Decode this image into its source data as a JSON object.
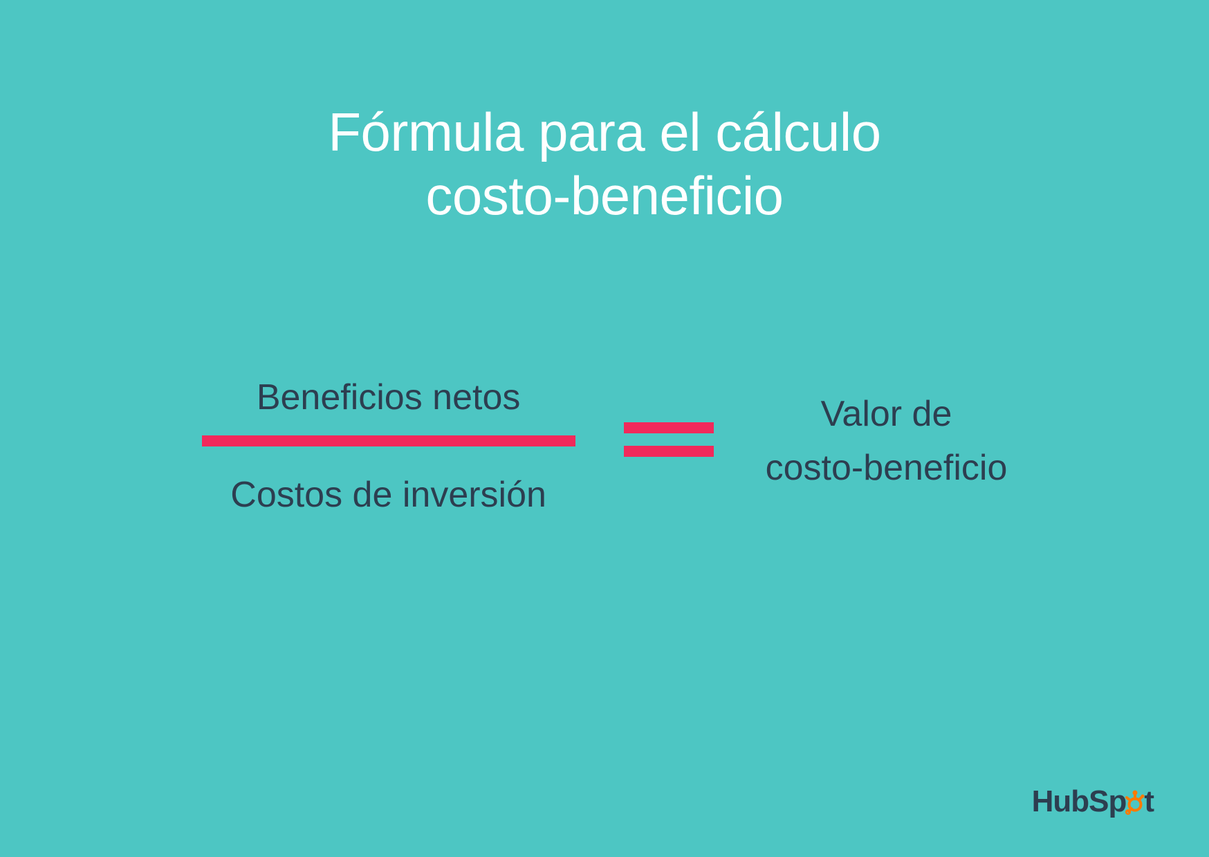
{
  "slide": {
    "background_color": "#4dc6c3",
    "title": {
      "line1": "Fórmula para el cálculo",
      "line2": "costo-beneficio",
      "color": "#ffffff",
      "fontsize": 78,
      "fontweight": 400
    },
    "formula": {
      "numerator": "Beneficios netos",
      "denominator": "Costos de inversión",
      "result_line1": "Valor de",
      "result_line2": "costo-beneficio",
      "text_color": "#2d3e50",
      "text_fontsize": 52,
      "divider_color": "#f2295b",
      "divider_width": 540,
      "divider_height": 16,
      "equals_bar_width": 130,
      "equals_bar_height": 16,
      "equals_gap": 18
    },
    "logo": {
      "text_before": "HubSp",
      "text_after": "t",
      "text_color": "#2d3e50",
      "accent_color": "#ff7a00",
      "fontsize": 44
    }
  }
}
